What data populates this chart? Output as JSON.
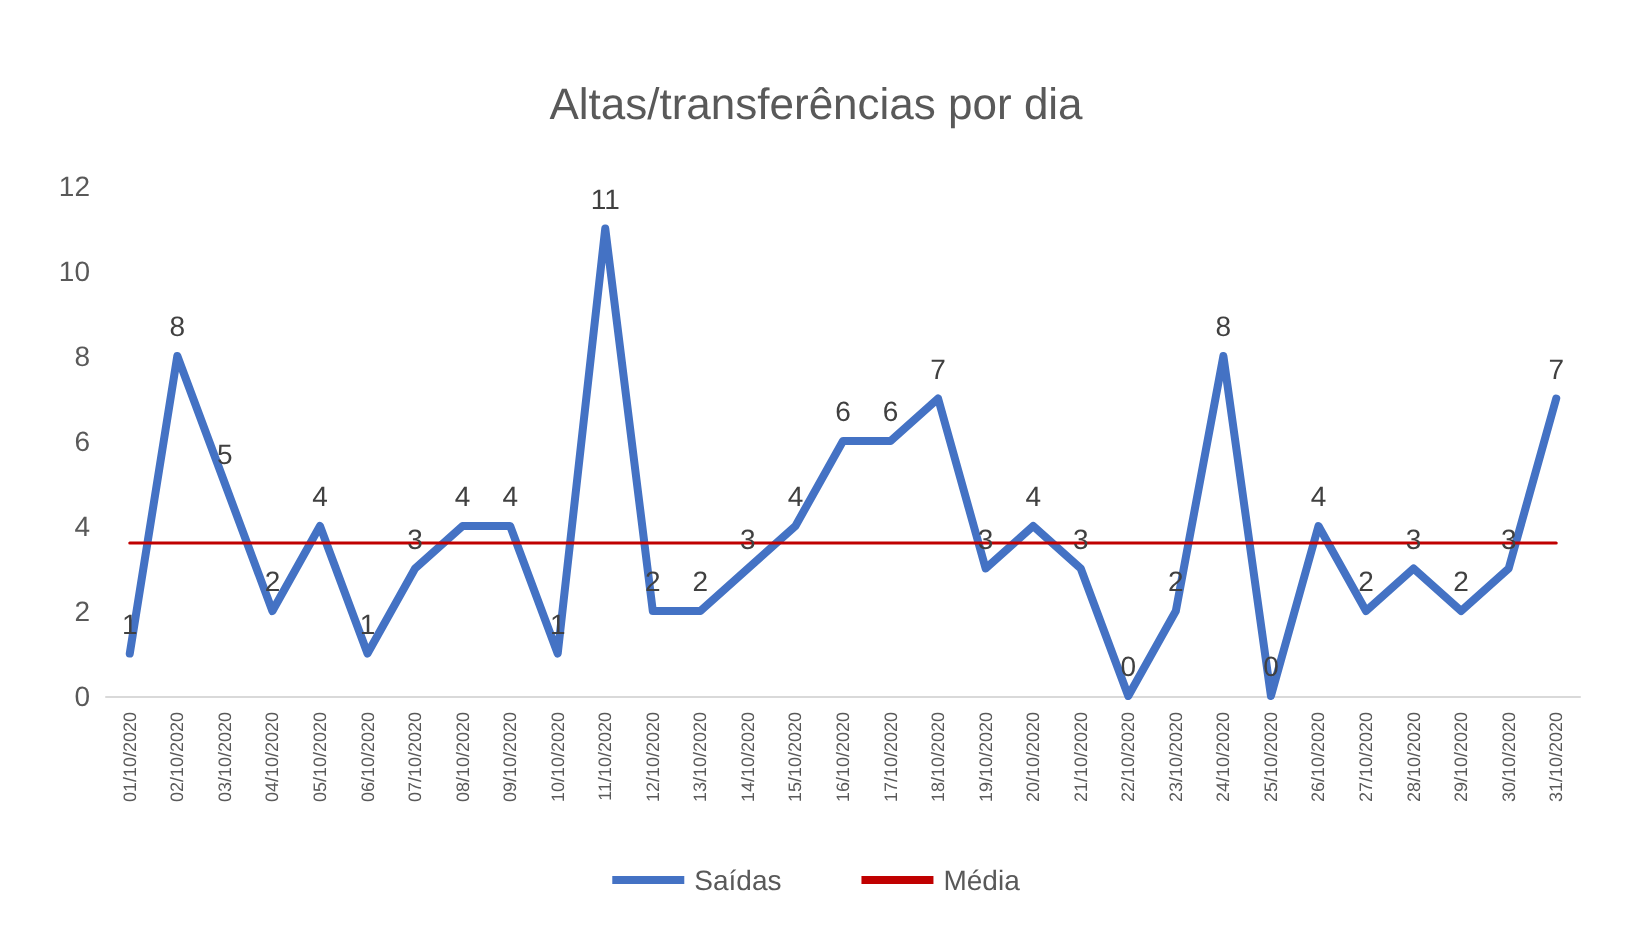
{
  "chart_data": {
    "type": "line",
    "title": "Altas/transferências por dia",
    "categories": [
      "01/10/2020",
      "02/10/2020",
      "03/10/2020",
      "04/10/2020",
      "05/10/2020",
      "06/10/2020",
      "07/10/2020",
      "08/10/2020",
      "09/10/2020",
      "10/10/2020",
      "11/10/2020",
      "12/10/2020",
      "13/10/2020",
      "14/10/2020",
      "15/10/2020",
      "16/10/2020",
      "17/10/2020",
      "18/10/2020",
      "19/10/2020",
      "20/10/2020",
      "21/10/2020",
      "22/10/2020",
      "23/10/2020",
      "24/10/2020",
      "25/10/2020",
      "26/10/2020",
      "27/10/2020",
      "28/10/2020",
      "29/10/2020",
      "30/10/2020",
      "31/10/2020"
    ],
    "series": [
      {
        "name": "Saídas",
        "color": "#4472c4",
        "values": [
          1,
          8,
          5,
          2,
          4,
          1,
          3,
          4,
          4,
          1,
          11,
          2,
          2,
          3,
          4,
          6,
          6,
          7,
          3,
          4,
          3,
          0,
          2,
          8,
          0,
          4,
          2,
          3,
          2,
          3,
          7
        ],
        "value_labels": [
          "1",
          "8",
          "5",
          "2",
          "4",
          "1",
          "3",
          "4",
          "4",
          "1",
          "11",
          "2",
          "2",
          "3",
          "4",
          "6",
          "6",
          "7",
          "3",
          "4",
          "3",
          "0",
          "2",
          "8",
          "0",
          "4",
          "2",
          "3",
          "2",
          "3",
          "7"
        ]
      },
      {
        "name": "Média",
        "color": "#c00000",
        "values": [
          3.6,
          3.6,
          3.6,
          3.6,
          3.6,
          3.6,
          3.6,
          3.6,
          3.6,
          3.6,
          3.6,
          3.6,
          3.6,
          3.6,
          3.6,
          3.6,
          3.6,
          3.6,
          3.6,
          3.6,
          3.6,
          3.6,
          3.6,
          3.6,
          3.6,
          3.6,
          3.6,
          3.6,
          3.6,
          3.6,
          3.6
        ]
      }
    ],
    "ylim": [
      0,
      12
    ],
    "yticks": [
      0,
      2,
      4,
      6,
      8,
      10,
      12
    ],
    "grid": false,
    "legend": "bottom",
    "marker": "none",
    "line_style": "solid"
  }
}
